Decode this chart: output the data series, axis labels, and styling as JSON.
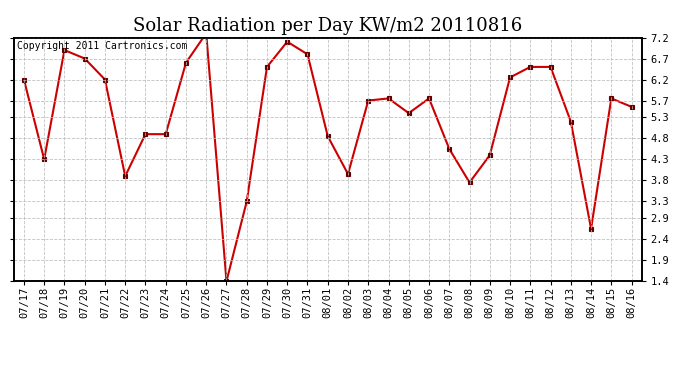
{
  "title": "Solar Radiation per Day KW/m2 20110816",
  "copyright": "Copyright 2011 Cartronics.com",
  "dates": [
    "07/17",
    "07/18",
    "07/19",
    "07/20",
    "07/21",
    "07/22",
    "07/23",
    "07/24",
    "07/25",
    "07/26",
    "07/27",
    "07/28",
    "07/29",
    "07/30",
    "07/31",
    "08/01",
    "08/02",
    "08/03",
    "08/04",
    "08/05",
    "08/06",
    "08/07",
    "08/08",
    "08/09",
    "08/10",
    "08/11",
    "08/12",
    "08/13",
    "08/14",
    "08/15",
    "08/16"
  ],
  "values": [
    6.2,
    4.3,
    6.9,
    6.7,
    6.2,
    3.9,
    4.9,
    4.9,
    6.6,
    7.3,
    1.4,
    3.3,
    6.5,
    7.1,
    6.8,
    4.85,
    3.95,
    5.7,
    5.75,
    5.4,
    5.75,
    4.55,
    3.75,
    4.4,
    6.25,
    6.5,
    6.5,
    5.2,
    2.65,
    5.75,
    5.55
  ],
  "ylim": [
    1.4,
    7.2
  ],
  "yticks": [
    1.4,
    1.9,
    2.4,
    2.9,
    3.3,
    3.8,
    4.3,
    4.8,
    5.3,
    5.7,
    6.2,
    6.7,
    7.2
  ],
  "line_color": "#cc0000",
  "marker": "s",
  "marker_color": "#660000",
  "marker_size": 2.5,
  "bg_color": "#ffffff",
  "grid_color": "#bbbbbb",
  "title_fontsize": 13,
  "tick_fontsize": 7.5,
  "copyright_fontsize": 7
}
